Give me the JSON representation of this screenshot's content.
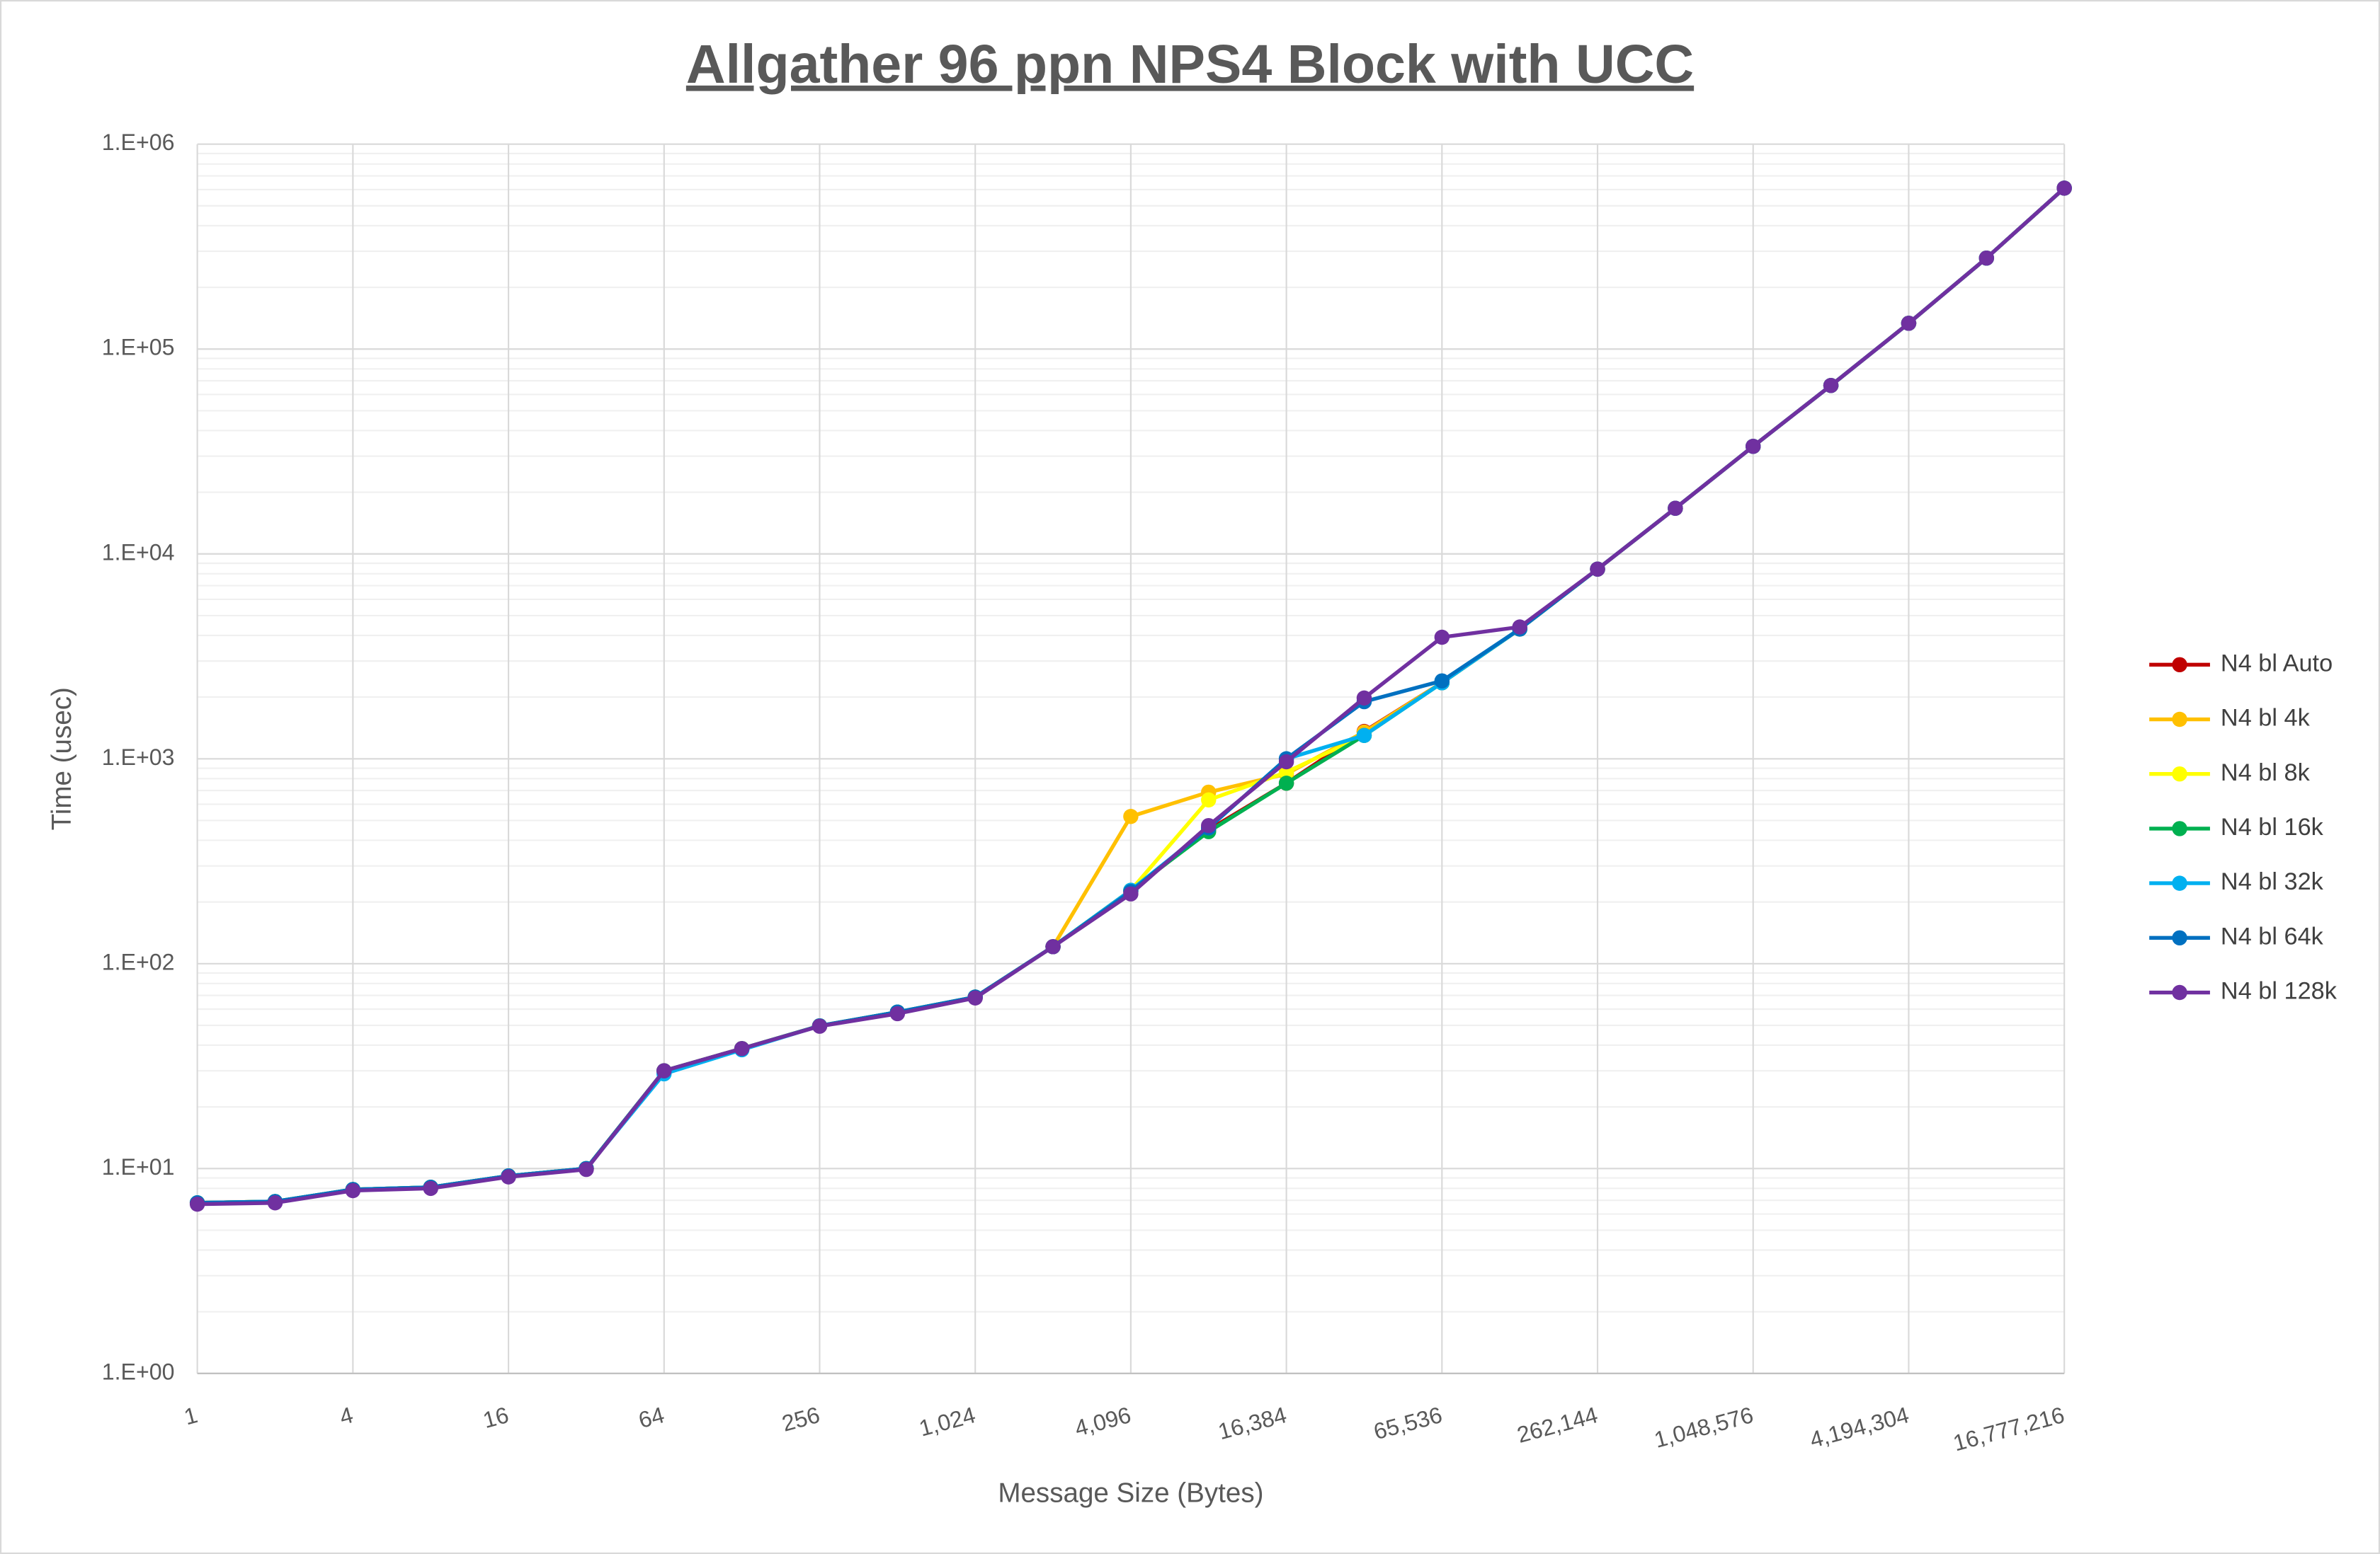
{
  "chart_data": {
    "type": "line",
    "title": "Allgather 96 ppn NPS4 Block with UCC",
    "x_label": "Message Size (Bytes)",
    "y_label": "Time (usec)",
    "xscale": "log",
    "yscale": "log",
    "grid": true,
    "minor_grid": true,
    "legend": "right",
    "x": [
      1,
      2,
      4,
      8,
      16,
      32,
      64,
      128,
      256,
      512,
      1024,
      2048,
      4096,
      8192,
      16384,
      32768,
      65536,
      131072,
      262144,
      524288,
      1048576,
      2097152,
      4194304,
      8388608,
      16777216
    ],
    "xlim": [
      1,
      16777216
    ],
    "xticks": [
      1,
      4,
      16,
      64,
      256,
      {
        "value": 1024,
        "label": "1,024"
      },
      {
        "value": 4096,
        "label": "4,096"
      },
      {
        "value": 16384,
        "label": "16,384"
      },
      {
        "value": 65536,
        "label": "65,536"
      },
      {
        "value": 262144,
        "label": "262,144"
      },
      {
        "value": 1048576,
        "label": "1,048,576"
      },
      {
        "value": 4194304,
        "label": "4,194,304"
      },
      {
        "value": 16777216,
        "label": "16,777,216"
      }
    ],
    "ylim": [
      1,
      1000000
    ],
    "yticks": [
      {
        "value": 1,
        "label": "1.E+00"
      },
      {
        "value": 10,
        "label": "1.E+01"
      },
      {
        "value": 100,
        "label": "1.E+02"
      },
      {
        "value": 1000,
        "label": "1.E+03"
      },
      {
        "value": 10000,
        "label": "1.E+04"
      },
      {
        "value": 100000,
        "label": "1.E+05"
      },
      {
        "value": 1000000,
        "label": "1.E+06"
      }
    ],
    "series": [
      {
        "name": "N4 bl Auto",
        "color": "#c00000",
        "values": [
          6.8,
          6.9,
          7.9,
          8.1,
          9.2,
          10,
          30,
          38.5,
          49.7,
          58,
          68.7,
          121,
          225,
          450,
          760,
          1360,
          2350,
          4300,
          8430,
          16700,
          33500,
          66400,
          133600,
          278000,
          610000
        ]
      },
      {
        "name": "N4 bl 4k",
        "color": "#ffc000",
        "values": [
          6.8,
          6.9,
          7.9,
          8.1,
          9.2,
          10,
          30,
          38.5,
          49.7,
          58,
          68.7,
          121,
          523,
          687,
          844,
          1350,
          2350,
          4300,
          8430,
          16700,
          33500,
          66400,
          133600,
          278000,
          610000
        ]
      },
      {
        "name": "N4 bl 8k",
        "color": "#ffff00",
        "values": [
          6.8,
          6.9,
          7.9,
          8.1,
          9.2,
          10,
          30,
          38.5,
          49.7,
          58,
          68.7,
          121,
          228,
          630,
          860,
          1300,
          2350,
          4300,
          8430,
          16700,
          33500,
          66400,
          133600,
          278000,
          610000
        ]
      },
      {
        "name": "N4 bl 16k",
        "color": "#00b050",
        "values": [
          6.8,
          6.9,
          7.9,
          8.1,
          9.2,
          10,
          30,
          38.5,
          49.7,
          58,
          68.7,
          121,
          228,
          441,
          760,
          1300,
          2350,
          4300,
          8430,
          16700,
          33500,
          66400,
          133600,
          278000,
          610000
        ]
      },
      {
        "name": "N4 bl 32k",
        "color": "#00b0f0",
        "values": [
          6.8,
          6.9,
          7.9,
          8.1,
          9.2,
          10,
          29,
          38,
          49.7,
          58,
          68.7,
          121,
          228,
          460,
          1000,
          1300,
          2350,
          4300,
          8430,
          16700,
          33500,
          66400,
          133600,
          278000,
          610000
        ]
      },
      {
        "name": "N4 bl 64k",
        "color": "#0070c0",
        "values": [
          6.8,
          6.9,
          7.9,
          8.1,
          9.2,
          10,
          30,
          38.5,
          49.7,
          58,
          68.7,
          121,
          225,
          460,
          1000,
          1900,
          2400,
          4300,
          8430,
          16700,
          33500,
          66400,
          133600,
          278000,
          610000
        ]
      },
      {
        "name": "N4 bl 128k",
        "color": "#7030a0",
        "values": [
          6.7,
          6.8,
          7.8,
          8.0,
          9.1,
          9.9,
          30,
          38.5,
          49.5,
          57,
          68,
          121,
          219,
          472,
          967,
          1980,
          3920,
          4400,
          8430,
          16700,
          33500,
          66400,
          133600,
          278000,
          610000
        ]
      }
    ]
  }
}
